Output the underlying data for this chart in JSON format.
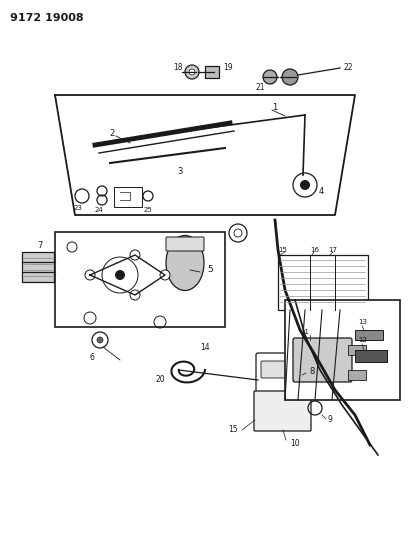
{
  "title": "9172 19008",
  "bg_color": "#ffffff",
  "line_color": "#1a1a1a",
  "fig_width": 4.11,
  "fig_height": 5.33,
  "dpi": 100
}
